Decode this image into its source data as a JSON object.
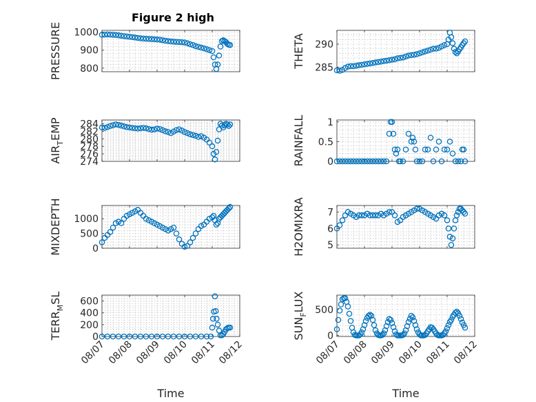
{
  "figure": {
    "title": "Figure 2 high"
  },
  "chart_data": [
    {
      "type": "scatter",
      "title": "Figure 2 high",
      "xlabel": "",
      "ylabel": "PRESSURE",
      "ylim": [
        780,
        1010
      ],
      "yticks": [
        800,
        900,
        1000
      ],
      "grid": true,
      "marker_color": "#0072BD",
      "xlim": [
        0,
        5
      ],
      "xticks": [
        0,
        1,
        2,
        3,
        4,
        5
      ],
      "xticklabels": [
        "08/07",
        "08/08",
        "08/09",
        "08/10",
        "08/11",
        "08/12"
      ],
      "show_xticklabels": false,
      "x": [
        0,
        0.1,
        0.2,
        0.3,
        0.4,
        0.5,
        0.6,
        0.7,
        0.8,
        0.9,
        1,
        1.1,
        1.2,
        1.3,
        1.4,
        1.5,
        1.6,
        1.7,
        1.8,
        1.9,
        2,
        2.1,
        2.2,
        2.3,
        2.4,
        2.5,
        2.6,
        2.7,
        2.8,
        2.9,
        3,
        3.1,
        3.2,
        3.3,
        3.4,
        3.5,
        3.6,
        3.7,
        3.8,
        3.9,
        4,
        4.05,
        4.1,
        4.15,
        4.2,
        4.25,
        4.3,
        4.35,
        4.4,
        4.45,
        4.5,
        4.55,
        4.6,
        4.65
      ],
      "y": [
        985,
        986,
        987,
        986,
        985,
        984,
        982,
        980,
        978,
        976,
        974,
        972,
        970,
        968,
        966,
        964,
        963,
        962,
        961,
        960,
        959,
        958,
        955,
        952,
        950,
        948,
        947,
        946,
        945,
        944,
        942,
        938,
        933,
        928,
        922,
        918,
        914,
        910,
        905,
        900,
        895,
        860,
        820,
        795,
        820,
        870,
        920,
        950,
        955,
        950,
        945,
        935,
        930,
        928
      ]
    },
    {
      "type": "scatter",
      "title": "",
      "xlabel": "",
      "ylabel": "THETA",
      "ylim": [
        284,
        293
      ],
      "yticks": [
        285,
        290
      ],
      "grid": true,
      "marker_color": "#0072BD",
      "xlim": [
        0,
        5
      ],
      "xticks": [
        0,
        1,
        2,
        3,
        4,
        5
      ],
      "xticklabels": [
        "08/07",
        "08/08",
        "08/09",
        "08/10",
        "08/11",
        "08/12"
      ],
      "show_xticklabels": false,
      "x": [
        0,
        0.1,
        0.2,
        0.3,
        0.4,
        0.5,
        0.6,
        0.7,
        0.8,
        0.9,
        1,
        1.1,
        1.2,
        1.3,
        1.4,
        1.5,
        1.6,
        1.7,
        1.8,
        1.9,
        2,
        2.1,
        2.2,
        2.3,
        2.4,
        2.5,
        2.6,
        2.7,
        2.8,
        2.9,
        3,
        3.1,
        3.2,
        3.3,
        3.4,
        3.5,
        3.6,
        3.7,
        3.8,
        3.9,
        4,
        4.05,
        4.1,
        4.15,
        4.2,
        4.25,
        4.3,
        4.35,
        4.4,
        4.45,
        4.5,
        4.55,
        4.6,
        4.65
      ],
      "y": [
        284.3,
        284.2,
        284.4,
        284.8,
        285.1,
        285.2,
        285.2,
        285.3,
        285.4,
        285.5,
        285.6,
        285.7,
        285.8,
        285.9,
        286.0,
        286.1,
        286.2,
        286.3,
        286.4,
        286.5,
        286.6,
        286.7,
        286.9,
        287.0,
        287.1,
        287.3,
        287.5,
        287.6,
        287.7,
        287.8,
        288.0,
        288.2,
        288.4,
        288.6,
        288.8,
        289.0,
        289.0,
        289.2,
        289.5,
        289.8,
        290.0,
        291.0,
        292.5,
        291.5,
        290.2,
        289.0,
        288.3,
        288.0,
        288.4,
        288.9,
        289.3,
        289.8,
        290.2,
        290.6
      ]
    },
    {
      "type": "scatter",
      "title": "",
      "xlabel": "",
      "ylabel": "AIR_TEMP",
      "ylim": [
        274,
        285
      ],
      "yticks": [
        274,
        276,
        278,
        280,
        282,
        284
      ],
      "grid": true,
      "marker_color": "#0072BD",
      "xlim": [
        0,
        5
      ],
      "xticks": [
        0,
        1,
        2,
        3,
        4,
        5
      ],
      "xticklabels": [
        "08/07",
        "08/08",
        "08/09",
        "08/10",
        "08/11",
        "08/12"
      ],
      "show_xticklabels": false,
      "x": [
        0,
        0.1,
        0.2,
        0.3,
        0.4,
        0.5,
        0.6,
        0.7,
        0.8,
        0.9,
        1,
        1.1,
        1.2,
        1.3,
        1.4,
        1.5,
        1.6,
        1.7,
        1.8,
        1.9,
        2,
        2.1,
        2.2,
        2.3,
        2.4,
        2.5,
        2.6,
        2.7,
        2.8,
        2.9,
        3,
        3.1,
        3.2,
        3.3,
        3.4,
        3.5,
        3.6,
        3.7,
        3.8,
        3.9,
        4,
        4.05,
        4.1,
        4.15,
        4.2,
        4.25,
        4.3,
        4.35,
        4.4,
        4.45,
        4.5,
        4.55,
        4.6,
        4.65
      ],
      "y": [
        283.0,
        282.9,
        283.1,
        283.4,
        283.6,
        283.8,
        283.7,
        283.5,
        283.3,
        283.1,
        283.0,
        282.9,
        282.8,
        282.7,
        282.8,
        282.9,
        282.8,
        282.6,
        282.4,
        282.5,
        282.7,
        282.6,
        282.3,
        282.0,
        281.8,
        281.5,
        281.9,
        282.3,
        282.5,
        282.2,
        281.8,
        281.5,
        281.2,
        281.0,
        280.8,
        280.5,
        280.7,
        280.3,
        279.8,
        279.0,
        278.0,
        276.0,
        274.5,
        276.5,
        279.5,
        282.5,
        284.0,
        283.5,
        283.0,
        283.6,
        284.0,
        283.8,
        283.4,
        283.8
      ]
    },
    {
      "type": "scatter",
      "title": "",
      "xlabel": "",
      "ylabel": "RAINFALL",
      "ylim": [
        0,
        1.05
      ],
      "yticks": [
        0,
        0.5,
        1
      ],
      "grid": true,
      "marker_color": "#0072BD",
      "xlim": [
        0,
        5
      ],
      "xticks": [
        0,
        1,
        2,
        3,
        4,
        5
      ],
      "xticklabels": [
        "08/07",
        "08/08",
        "08/09",
        "08/10",
        "08/11",
        "08/12"
      ],
      "show_xticklabels": false,
      "x": [
        0,
        0.1,
        0.2,
        0.3,
        0.4,
        0.5,
        0.6,
        0.7,
        0.8,
        0.9,
        1,
        1.1,
        1.2,
        1.3,
        1.4,
        1.5,
        1.6,
        1.7,
        1.8,
        1.9,
        1.95,
        2.0,
        2.05,
        2.1,
        2.15,
        2.2,
        2.25,
        2.3,
        2.4,
        2.5,
        2.6,
        2.7,
        2.75,
        2.8,
        2.85,
        2.9,
        3.0,
        3.1,
        3.2,
        3.3,
        3.4,
        3.5,
        3.6,
        3.7,
        3.8,
        3.9,
        4.0,
        4.1,
        4.2,
        4.3,
        4.4,
        4.5,
        4.55,
        4.6,
        4.65
      ],
      "y": [
        0,
        0,
        0,
        0,
        0,
        0,
        0,
        0,
        0,
        0,
        0,
        0,
        0,
        0,
        0,
        0,
        0,
        0,
        0,
        0.7,
        1.0,
        1.0,
        0.7,
        0.3,
        0.2,
        0.3,
        0,
        0,
        0,
        0.3,
        0.7,
        0.5,
        0.6,
        0.5,
        0.3,
        0,
        0,
        0,
        0.3,
        0.3,
        0.6,
        0,
        0.3,
        0.5,
        0,
        0.3,
        0.3,
        0.5,
        0.2,
        0,
        0,
        0,
        0.3,
        0.3,
        0
      ]
    },
    {
      "type": "scatter",
      "title": "",
      "xlabel": "",
      "ylabel": "MIXDEPTH",
      "ylim": [
        0,
        1450
      ],
      "yticks": [
        0,
        500,
        1000
      ],
      "grid": true,
      "marker_color": "#0072BD",
      "xlim": [
        0,
        5
      ],
      "xticks": [
        0,
        1,
        2,
        3,
        4,
        5
      ],
      "xticklabels": [
        "08/07",
        "08/08",
        "08/09",
        "08/10",
        "08/11",
        "08/12"
      ],
      "show_xticklabels": false,
      "x": [
        0,
        0.1,
        0.2,
        0.3,
        0.4,
        0.5,
        0.6,
        0.7,
        0.8,
        0.9,
        1,
        1.1,
        1.2,
        1.3,
        1.4,
        1.5,
        1.6,
        1.7,
        1.8,
        1.9,
        2,
        2.1,
        2.2,
        2.3,
        2.4,
        2.5,
        2.6,
        2.7,
        2.8,
        2.9,
        3,
        3.1,
        3.2,
        3.3,
        3.4,
        3.5,
        3.6,
        3.7,
        3.8,
        3.9,
        4,
        4.05,
        4.1,
        4.15,
        4.2,
        4.25,
        4.3,
        4.35,
        4.4,
        4.45,
        4.5,
        4.55,
        4.6,
        4.65
      ],
      "y": [
        200,
        350,
        450,
        550,
        700,
        850,
        900,
        850,
        1000,
        1100,
        1150,
        1200,
        1250,
        1300,
        1200,
        1100,
        1000,
        950,
        900,
        850,
        800,
        750,
        700,
        650,
        600,
        650,
        700,
        500,
        300,
        150,
        50,
        80,
        200,
        350,
        500,
        650,
        750,
        800,
        900,
        1000,
        1050,
        1100,
        950,
        800,
        850,
        1000,
        1050,
        1100,
        1150,
        1200,
        1250,
        1300,
        1350,
        1400
      ]
    },
    {
      "type": "scatter",
      "title": "",
      "xlabel": "",
      "ylabel": "H2OMIXRA",
      "ylim": [
        4.8,
        7.4
      ],
      "yticks": [
        5,
        6,
        7
      ],
      "grid": true,
      "marker_color": "#0072BD",
      "xlim": [
        0,
        5
      ],
      "xticks": [
        0,
        1,
        2,
        3,
        4,
        5
      ],
      "xticklabels": [
        "08/07",
        "08/08",
        "08/09",
        "08/10",
        "08/11",
        "08/12"
      ],
      "show_xticklabels": false,
      "x": [
        0,
        0.1,
        0.2,
        0.3,
        0.4,
        0.5,
        0.6,
        0.7,
        0.8,
        0.9,
        1,
        1.1,
        1.2,
        1.3,
        1.4,
        1.5,
        1.6,
        1.7,
        1.8,
        1.9,
        2,
        2.1,
        2.2,
        2.3,
        2.4,
        2.5,
        2.6,
        2.7,
        2.8,
        2.9,
        3,
        3.1,
        3.2,
        3.3,
        3.4,
        3.5,
        3.6,
        3.7,
        3.8,
        3.9,
        4,
        4.05,
        4.1,
        4.15,
        4.2,
        4.25,
        4.3,
        4.35,
        4.4,
        4.45,
        4.5,
        4.55,
        4.6,
        4.65
      ],
      "y": [
        6.0,
        6.2,
        6.5,
        6.8,
        7.0,
        6.9,
        6.8,
        6.7,
        6.8,
        6.8,
        6.8,
        6.9,
        6.8,
        6.8,
        6.8,
        6.8,
        6.9,
        6.8,
        6.9,
        7.0,
        7.0,
        6.8,
        6.4,
        6.5,
        6.7,
        6.8,
        6.9,
        7.0,
        7.1,
        7.2,
        7.2,
        7.1,
        7.0,
        6.9,
        6.8,
        6.7,
        6.6,
        6.8,
        6.9,
        6.8,
        6.5,
        6.0,
        5.5,
        5.0,
        5.4,
        6.0,
        6.5,
        6.8,
        7.0,
        7.2,
        7.2,
        7.1,
        7.0,
        6.9
      ]
    },
    {
      "type": "scatter",
      "title": "",
      "xlabel": "Time",
      "ylabel": "TERR_MSL",
      "ylim": [
        0,
        700
      ],
      "yticks": [
        0,
        200,
        400,
        600
      ],
      "grid": true,
      "marker_color": "#0072BD",
      "xlim": [
        0,
        5
      ],
      "xticks": [
        0,
        1,
        2,
        3,
        4,
        5
      ],
      "xticklabels": [
        "08/07",
        "08/08",
        "08/09",
        "08/10",
        "08/11",
        "08/12"
      ],
      "show_xticklabels": true,
      "x": [
        0,
        0.2,
        0.4,
        0.6,
        0.8,
        1,
        1.2,
        1.4,
        1.6,
        1.8,
        2,
        2.2,
        2.4,
        2.6,
        2.8,
        3,
        3.2,
        3.4,
        3.6,
        3.8,
        3.95,
        4.0,
        4.03,
        4.06,
        4.1,
        4.13,
        4.16,
        4.2,
        4.25,
        4.3,
        4.35,
        4.4,
        4.45,
        4.5,
        4.55,
        4.6,
        4.65
      ],
      "y": [
        0,
        0,
        0,
        0,
        0,
        0,
        0,
        0,
        0,
        0,
        0,
        0,
        0,
        0,
        0,
        0,
        0,
        0,
        0,
        0,
        0,
        150,
        300,
        420,
        680,
        430,
        300,
        200,
        100,
        20,
        20,
        40,
        80,
        120,
        140,
        150,
        150
      ]
    },
    {
      "type": "scatter",
      "title": "",
      "xlabel": "Time",
      "ylabel": "SUN_FLUX",
      "ylim": [
        -20,
        780
      ],
      "yticks": [
        0,
        500
      ],
      "grid": true,
      "marker_color": "#0072BD",
      "xlim": [
        0,
        5
      ],
      "xticks": [
        0,
        1,
        2,
        3,
        4,
        5
      ],
      "xticklabels": [
        "08/07",
        "08/08",
        "08/09",
        "08/10",
        "08/11",
        "08/12"
      ],
      "show_xticklabels": true,
      "x": [
        0,
        0.05,
        0.1,
        0.15,
        0.2,
        0.25,
        0.3,
        0.35,
        0.4,
        0.45,
        0.5,
        0.55,
        0.6,
        0.65,
        0.7,
        0.75,
        0.8,
        0.85,
        0.9,
        0.95,
        1.0,
        1.05,
        1.1,
        1.15,
        1.2,
        1.25,
        1.3,
        1.35,
        1.4,
        1.45,
        1.5,
        1.55,
        1.6,
        1.65,
        1.7,
        1.75,
        1.8,
        1.85,
        1.9,
        1.95,
        2.0,
        2.05,
        2.1,
        2.15,
        2.2,
        2.25,
        2.3,
        2.35,
        2.4,
        2.45,
        2.5,
        2.55,
        2.6,
        2.65,
        2.7,
        2.75,
        2.8,
        2.85,
        2.9,
        2.95,
        3.0,
        3.05,
        3.1,
        3.15,
        3.2,
        3.25,
        3.3,
        3.35,
        3.4,
        3.45,
        3.5,
        3.55,
        3.6,
        3.65,
        3.7,
        3.75,
        3.8,
        3.85,
        3.9,
        3.95,
        4.0,
        4.05,
        4.1,
        4.15,
        4.2,
        4.25,
        4.3,
        4.35,
        4.4,
        4.45,
        4.5,
        4.55,
        4.6,
        4.65
      ],
      "y": [
        120,
        300,
        480,
        600,
        700,
        720,
        720,
        650,
        560,
        420,
        280,
        150,
        60,
        10,
        0,
        0,
        0,
        20,
        60,
        120,
        200,
        280,
        340,
        380,
        400,
        380,
        300,
        200,
        100,
        40,
        10,
        0,
        0,
        10,
        40,
        100,
        180,
        260,
        320,
        300,
        240,
        160,
        80,
        20,
        0,
        0,
        0,
        0,
        10,
        40,
        100,
        180,
        260,
        320,
        380,
        350,
        280,
        200,
        120,
        60,
        20,
        0,
        0,
        0,
        10,
        40,
        80,
        120,
        160,
        150,
        120,
        80,
        40,
        10,
        0,
        0,
        0,
        10,
        40,
        80,
        140,
        200,
        260,
        300,
        360,
        400,
        440,
        460,
        430,
        380,
        320,
        250,
        200,
        150
      ]
    }
  ]
}
